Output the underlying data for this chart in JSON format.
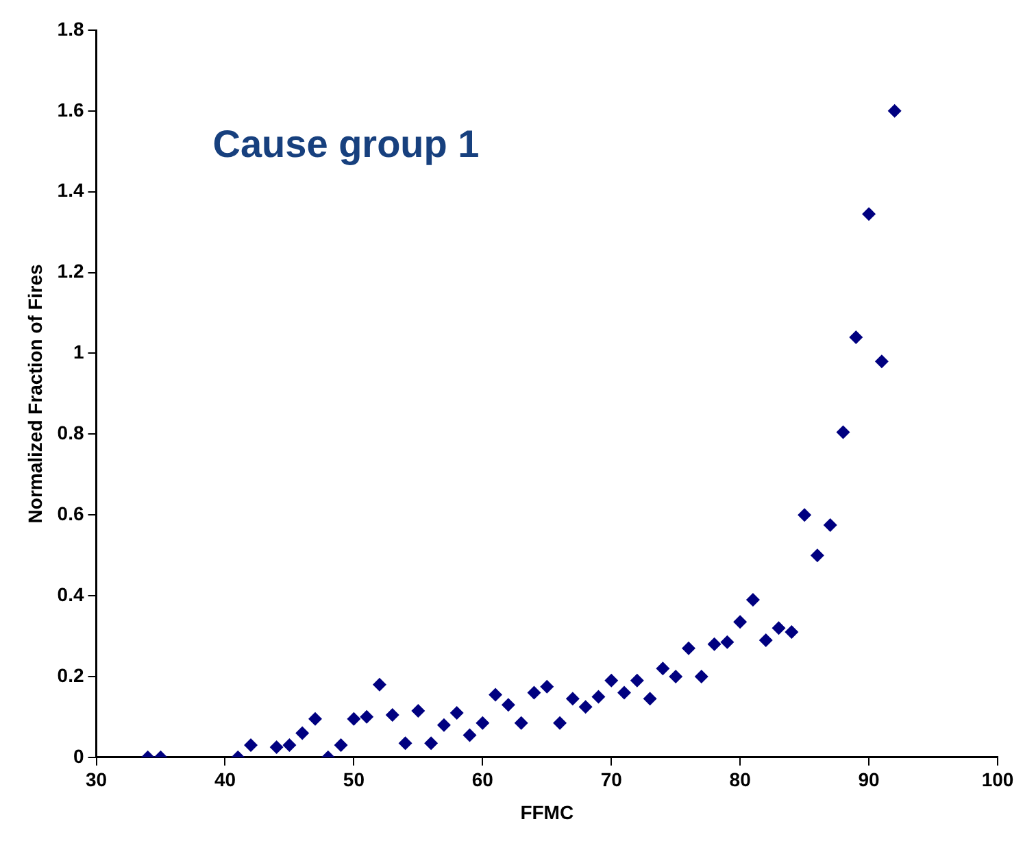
{
  "chart_data": {
    "type": "scatter",
    "xlabel": "FFMC",
    "ylabel": "Normalized Fraction of Fires",
    "annotations": [
      "Cause group 1"
    ],
    "x": [
      34,
      35,
      41,
      42,
      44,
      45,
      46,
      47,
      48,
      49,
      50,
      51,
      52,
      53,
      54,
      55,
      56,
      57,
      58,
      59,
      60,
      61,
      62,
      63,
      64,
      65,
      66,
      67,
      68,
      69,
      70,
      71,
      72,
      73,
      74,
      75,
      76,
      77,
      78,
      79,
      80,
      81,
      82,
      83,
      84,
      85,
      86,
      87,
      88,
      89,
      90,
      91,
      92
    ],
    "series": [
      {
        "color": "#000080",
        "values": [
          0,
          0,
          0,
          0.03,
          0.025,
          0.03,
          0.06,
          0.095,
          0,
          0.03,
          0.095,
          0.1,
          0.18,
          0.105,
          0.035,
          0.115,
          0.035,
          0.08,
          0.11,
          0.055,
          0.085,
          0.155,
          0.13,
          0.085,
          0.16,
          0.175,
          0.085,
          0.145,
          0.125,
          0.15,
          0.19,
          0.16,
          0.19,
          0.145,
          0.22,
          0.2,
          0.27,
          0.2,
          0.28,
          0.285,
          0.335,
          0.39,
          0.29,
          0.32,
          0.31,
          0.6,
          0.5,
          0.575,
          0.805,
          1.04,
          1.345,
          0.98,
          1.6
        ]
      }
    ],
    "xlim": [
      30,
      100
    ],
    "xticks": [
      30,
      40,
      50,
      60,
      70,
      80,
      90,
      100
    ],
    "ylim": [
      0,
      1.8
    ],
    "yticks": [
      0,
      0.2,
      0.4,
      0.6,
      0.8,
      1,
      1.2,
      1.4,
      1.6,
      1.8
    ],
    "marker": "diamond",
    "grid": false,
    "legend": false
  }
}
